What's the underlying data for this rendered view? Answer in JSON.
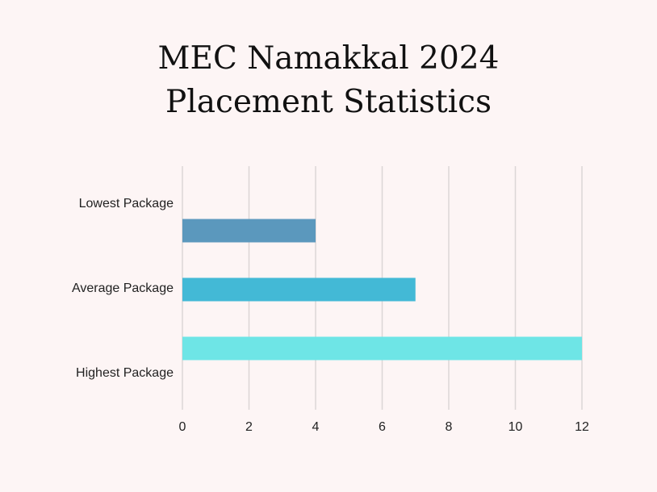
{
  "chart_data": {
    "type": "bar",
    "orientation": "horizontal",
    "title_lines": [
      "MEC Namakkal 2024",
      "Placement Statistics"
    ],
    "categories": [
      "Lowest Package",
      "Average Package",
      "Highest Package"
    ],
    "values": [
      4,
      7,
      12
    ],
    "bar_colors": [
      "#5b98bd",
      "#43b9d6",
      "#6ee5e6"
    ],
    "xlim": [
      0,
      12
    ],
    "xticks": [
      0,
      2,
      4,
      6,
      8,
      10,
      12
    ],
    "grid": true,
    "legend": "none",
    "xlabel": "",
    "ylabel": ""
  }
}
